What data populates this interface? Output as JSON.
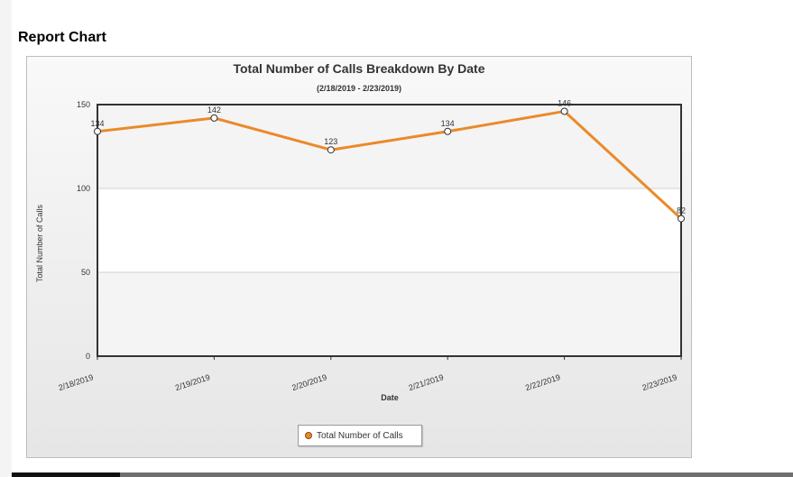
{
  "page": {
    "title": "Report Chart"
  },
  "colors": {
    "series": "#ea8a2a",
    "plot_border": "#333333"
  },
  "chart_data": {
    "type": "line",
    "title": "Total Number of Calls Breakdown By Date",
    "subtitle": "(2/18/2019 - 2/23/2019)",
    "xlabel": "Date",
    "ylabel": "Total Number of Calls",
    "categories": [
      "2/18/2019",
      "2/19/2019",
      "2/20/2019",
      "2/21/2019",
      "2/22/2019",
      "2/23/2019"
    ],
    "series": [
      {
        "name": "Total Number of Calls",
        "values": [
          134,
          142,
          123,
          134,
          146,
          82
        ]
      }
    ],
    "ylim": [
      0,
      150
    ],
    "yticks": [
      0,
      50,
      100,
      150
    ],
    "grid": true,
    "legend_position": "bottom-center",
    "data_labels": true
  }
}
